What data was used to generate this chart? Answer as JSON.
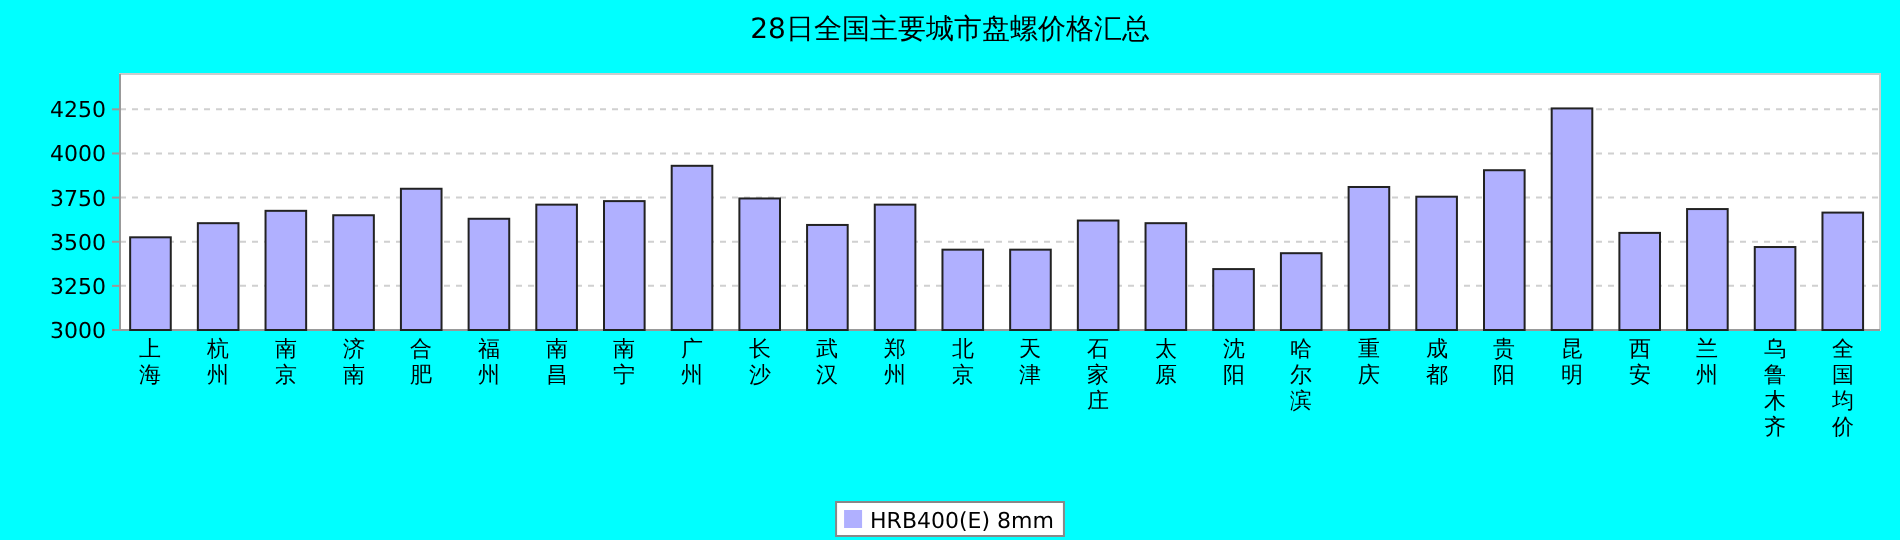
{
  "chart_data": {
    "type": "bar",
    "title": "28日全国主要城市盘螺价格汇总",
    "categories": [
      "上海",
      "杭州",
      "南京",
      "济南",
      "合肥",
      "福州",
      "南昌",
      "南宁",
      "广州",
      "长沙",
      "武汉",
      "郑州",
      "北京",
      "天津",
      "石家庄",
      "太原",
      "沈阳",
      "哈尔滨",
      "重庆",
      "成都",
      "贵阳",
      "昆明",
      "西安",
      "兰州",
      "乌鲁木齐",
      "全国均价"
    ],
    "series": [
      {
        "name": "HRB400(E) 8mm",
        "color": "#b0b0ff",
        "values": [
          3525,
          3605,
          3675,
          3650,
          3800,
          3630,
          3710,
          3730,
          3930,
          3745,
          3595,
          3710,
          3455,
          3455,
          3620,
          3605,
          3345,
          3435,
          3810,
          3755,
          3905,
          4255,
          3550,
          3685,
          3470,
          3665
        ]
      }
    ],
    "ylim": [
      3000,
      4450
    ],
    "yticks": [
      3000,
      3250,
      3500,
      3750,
      4000,
      4250
    ],
    "grid": "y",
    "legend": "bottom"
  }
}
